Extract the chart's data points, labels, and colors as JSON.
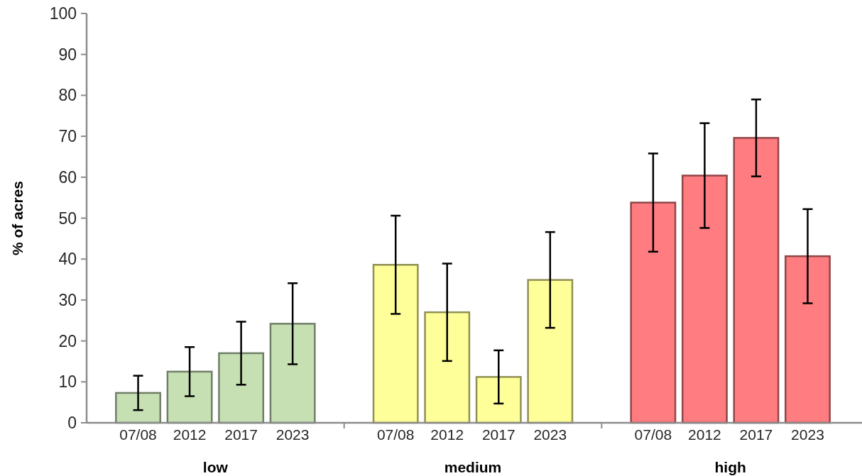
{
  "chart_data": {
    "type": "bar",
    "ylabel": "% of acres",
    "categories": [
      "07/08",
      "2012",
      "2017",
      "2023",
      "07/08",
      "2012",
      "2017",
      "2023",
      "07/08",
      "2012",
      "2017",
      "2023"
    ],
    "values": [
      7.3,
      12.5,
      17.0,
      24.2,
      38.6,
      27.0,
      11.2,
      34.9,
      53.8,
      60.4,
      69.6,
      40.7
    ],
    "errors": [
      4.2,
      6.0,
      7.7,
      9.9,
      12.0,
      11.9,
      6.5,
      11.7,
      12.0,
      12.8,
      9.4,
      11.5
    ],
    "colors": [
      "#c6e0b4",
      "#c6e0b4",
      "#c6e0b4",
      "#c6e0b4",
      "#ffff99",
      "#ffff99",
      "#ffff99",
      "#ffff99",
      "#ff7c80",
      "#ff7c80",
      "#ff7c80",
      "#ff7c80"
    ],
    "annotations": [
      "low",
      "medium",
      "high"
    ],
    "ylim": [
      0,
      100
    ],
    "yticks": [
      0,
      10,
      20,
      30,
      40,
      50,
      60,
      70,
      80,
      90,
      100
    ]
  }
}
